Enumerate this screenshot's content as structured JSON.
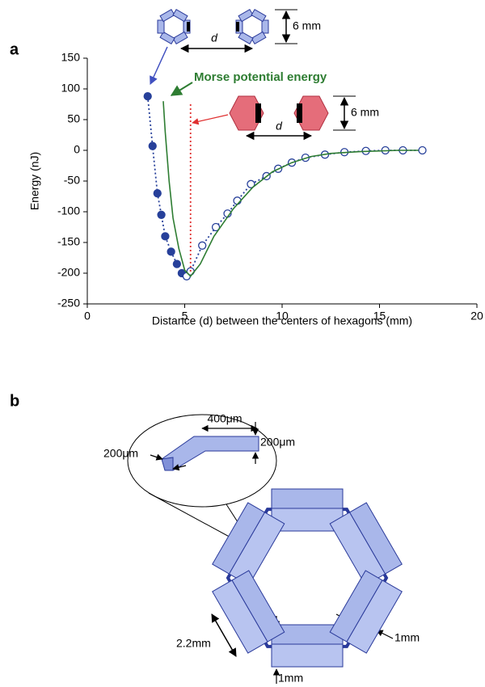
{
  "panel_labels": [
    "a",
    "b"
  ],
  "chart_data": {
    "type": "scatter-line",
    "x_label": "Distance (d) between the centers of hexagons (mm)",
    "y_label": "Energy (nJ)",
    "annotation": "Morse potential energy",
    "xlim": [
      0,
      20
    ],
    "xticks": [
      0,
      5,
      10,
      15,
      20
    ],
    "ylim": [
      -250,
      150
    ],
    "yticks": [
      -250,
      -200,
      -150,
      -100,
      -50,
      0,
      50,
      100,
      150
    ],
    "series": [
      {
        "color": "#27409a",
        "marker": "filled",
        "line_style": "dotted",
        "x": [
          3.1,
          3.35,
          3.6,
          3.8,
          4.0,
          4.3,
          4.6,
          4.85
        ],
        "values": [
          88,
          7,
          -70,
          -105,
          -140,
          -165,
          -185,
          -200
        ]
      },
      {
        "color": "#27409a",
        "marker": "open",
        "line_style": "dotted",
        "x": [
          5.1,
          5.3,
          5.9,
          6.6,
          7.2,
          7.7,
          8.4,
          9.2,
          9.8,
          10.5,
          11.2,
          12.2,
          13.2,
          14.3,
          15.3,
          16.2,
          17.2
        ],
        "values": [
          -205,
          -197,
          -155,
          -125,
          -103,
          -82,
          -55,
          -42,
          -30,
          -20,
          -12,
          -7,
          -3,
          -1,
          0,
          0,
          0
        ]
      },
      {
        "color": "#2e7d32",
        "marker": "none",
        "line_style": "solid",
        "x": [
          3.9,
          4.0,
          4.2,
          4.4,
          4.7,
          5.0,
          5.3,
          5.8,
          6.5,
          7.5,
          8.5,
          9.5,
          10.5,
          11.5,
          12.5,
          14,
          16,
          17
        ],
        "values": [
          80,
          30,
          -50,
          -110,
          -160,
          -195,
          -205,
          -185,
          -140,
          -95,
          -60,
          -35,
          -20,
          -10,
          -5,
          -2,
          0,
          0
        ]
      },
      {
        "color": "#e03030",
        "marker": "none",
        "line_style": "dotted",
        "x": [
          5.3,
          5.3
        ],
        "values": [
          75,
          -200
        ]
      }
    ]
  },
  "chart_insets": {
    "small_gap": "d",
    "small_size": "6 mm",
    "large_gap": "d",
    "large_size": "6 mm"
  },
  "diagram": {
    "segment_length": "400μm",
    "segment_height": "200μm",
    "segment_width": "200μm",
    "panel_length": "2.2mm",
    "panel_side_gap": "1mm",
    "panel_bottom_gap": "1mm"
  }
}
